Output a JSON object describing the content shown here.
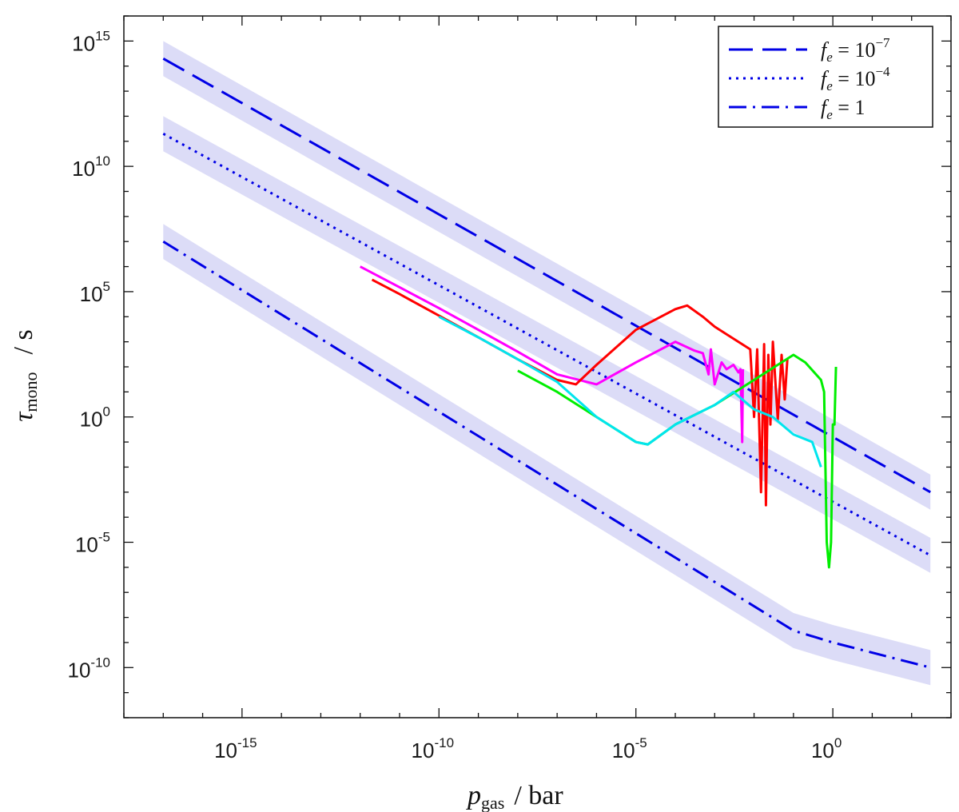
{
  "chart_data": {
    "type": "line",
    "title": "",
    "xlabel": {
      "base": "p",
      "sub": "gas",
      "unit": "/ bar"
    },
    "ylabel": {
      "base": "τ",
      "sub": "mono",
      "unit": "/ s"
    },
    "x_scale": "log",
    "y_scale": "log",
    "xlim": [
      1e-18,
      1000.0
    ],
    "ylim": [
      1e-12,
      1e+16
    ],
    "x_ticks": [
      {
        "base": "10",
        "exp": "-15",
        "value": 1e-15
      },
      {
        "base": "10",
        "exp": "-10",
        "value": 1e-10
      },
      {
        "base": "10",
        "exp": "-5",
        "value": 1e-05
      },
      {
        "base": "10",
        "exp": "0",
        "value": 1
      }
    ],
    "y_ticks": [
      {
        "base": "10",
        "exp": "-10",
        "value": 1e-10
      },
      {
        "base": "10",
        "exp": "-5",
        "value": 1e-05
      },
      {
        "base": "10",
        "exp": "0",
        "value": 1
      },
      {
        "base": "10",
        "exp": "5",
        "value": 100000.0
      },
      {
        "base": "10",
        "exp": "10",
        "value": 10000000000.0
      },
      {
        "base": "10",
        "exp": "15",
        "value": 1000000000000000.0
      }
    ],
    "grid": false,
    "legend_position": "top-right",
    "legend": [
      {
        "label_base": "f",
        "label_sub": "e",
        "label_rel": " = 10",
        "label_exp": "−7",
        "style": "dashed",
        "color": "#0000e6"
      },
      {
        "label_base": "f",
        "label_sub": "e",
        "label_rel": " = 10",
        "label_exp": "−4",
        "style": "dotted",
        "color": "#0000e6"
      },
      {
        "label_base": "f",
        "label_sub": "e",
        "label_rel": " = 1",
        "label_exp": "",
        "style": "dashdot",
        "color": "#0000e6"
      }
    ],
    "band_color": "#dcdcf7",
    "band_half_width_decades": 0.7,
    "reference_lines": [
      {
        "fe": "1e-7",
        "style": "dashed",
        "x": [
          1e-17,
          300
        ],
        "y": [
          200000000000000.0,
          0.001
        ]
      },
      {
        "fe": "1e-4",
        "style": "dotted",
        "x": [
          1e-17,
          300
        ],
        "y": [
          200000000000.0,
          3e-06
        ]
      },
      {
        "fe": "1",
        "style": "dashdot",
        "x": [
          1e-17,
          0.1,
          1,
          300
        ],
        "y": [
          10000000.0,
          3e-09,
          1e-09,
          1e-10
        ]
      }
    ],
    "series": [
      {
        "color": "#ff00ff",
        "x": [
          1e-12,
          1e-11,
          1e-10,
          1e-09,
          1e-08,
          1e-07,
          1e-06,
          1e-05,
          0.0001,
          0.0003,
          0.0005,
          0.0007,
          0.0008,
          0.001,
          0.0015,
          0.002,
          0.003,
          0.004,
          0.0045,
          0.005,
          0.0052
        ],
        "y": [
          1000000.0,
          150000.0,
          22000.0,
          3000.0,
          400.0,
          50,
          20,
          150,
          1000.0,
          450,
          350,
          50,
          500,
          20,
          150,
          80,
          120,
          60,
          80,
          0.1,
          80
        ]
      },
      {
        "color": "#ff0000",
        "x": [
          2e-12,
          1e-11,
          1e-10,
          1e-09,
          1e-08,
          1e-07,
          3e-07,
          1e-06,
          1e-05,
          0.0001,
          0.0002,
          0.0005,
          0.001,
          0.002,
          0.008,
          0.01,
          0.012,
          0.015,
          0.018,
          0.02,
          0.023,
          0.026,
          0.03,
          0.04,
          0.05,
          0.06,
          0.07
        ],
        "y": [
          300000.0,
          80000.0,
          11000.0,
          1500.0,
          200.0,
          30,
          20,
          120,
          3000.0,
          20000.0,
          28000.0,
          10000.0,
          4000.0,
          2000.0,
          500,
          1,
          500,
          0.001,
          800,
          0.0003,
          300,
          0.5,
          1000.0,
          0.8,
          300,
          5,
          200
        ]
      },
      {
        "color": "#00ee00",
        "x": [
          1e-08,
          1e-07,
          1e-06,
          1e-05,
          2e-05,
          0.0001,
          0.001,
          0.01,
          0.1,
          0.2,
          0.5,
          0.6,
          0.7,
          0.8,
          0.9,
          1,
          1.1,
          1.2
        ],
        "y": [
          70,
          10,
          1,
          0.1,
          0.08,
          0.5,
          3,
          30,
          300,
          150,
          30,
          10,
          1e-05,
          1e-06,
          1e-05,
          0.5,
          0.5,
          100.0
        ]
      },
      {
        "color": "#00e5ee",
        "x": [
          1e-10,
          1e-09,
          1e-08,
          1e-07,
          1e-06,
          1e-05,
          2e-05,
          0.0001,
          0.001,
          0.003,
          0.01,
          0.03,
          0.05,
          0.1,
          0.3,
          0.5
        ],
        "y": [
          10000.0,
          1500.0,
          200,
          25,
          1,
          0.1,
          0.08,
          0.5,
          3,
          10,
          2,
          1,
          0.5,
          0.2,
          0.1,
          0.01
        ]
      }
    ]
  }
}
